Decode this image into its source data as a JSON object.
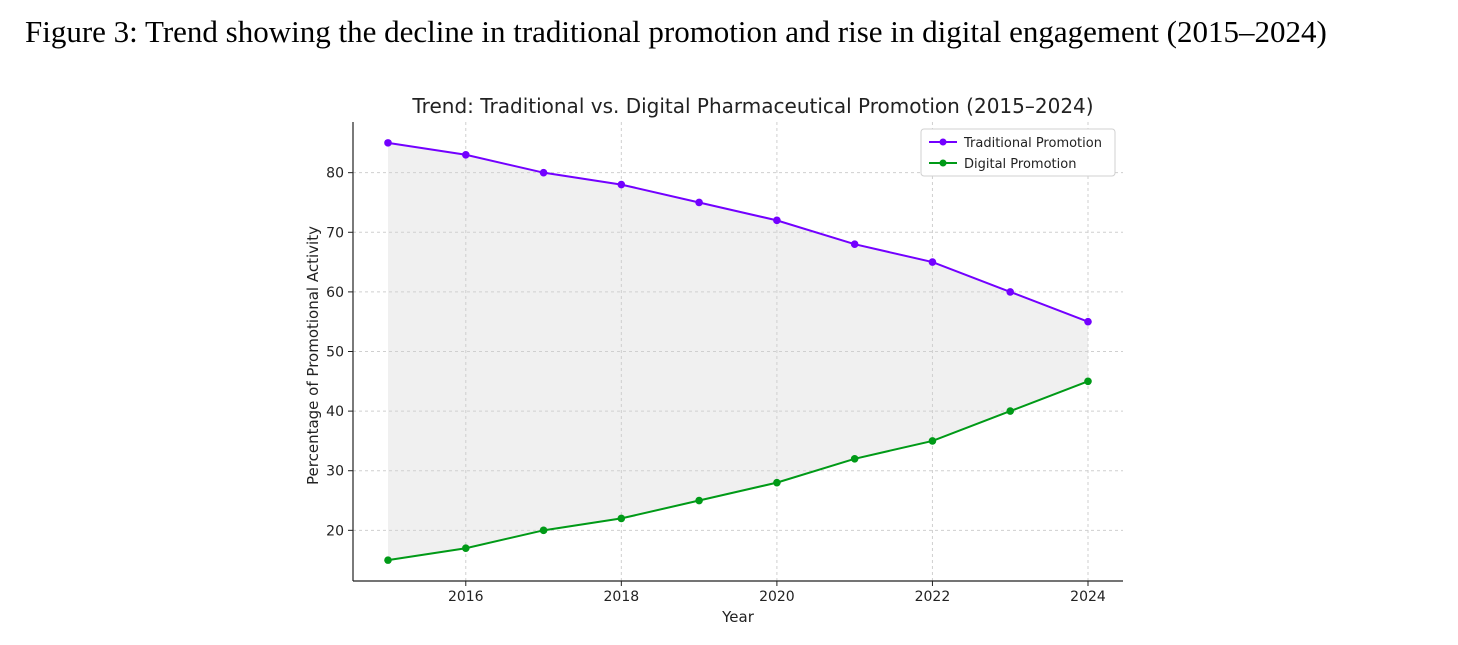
{
  "figure": {
    "caption": "Figure 3: Trend showing the decline in traditional promotion and rise in digital engagement (2015–2024)"
  },
  "chart_data": {
    "type": "line",
    "title": "Trend: Traditional vs. Digital Pharmaceutical Promotion (2015–2024)",
    "xlabel": "Year",
    "ylabel": "Percentage of Promotional Activity",
    "x": [
      2015,
      2016,
      2017,
      2018,
      2019,
      2020,
      2021,
      2022,
      2023,
      2024
    ],
    "x_ticks": [
      2016,
      2018,
      2020,
      2022,
      2024
    ],
    "y_ticks": [
      20,
      30,
      40,
      50,
      60,
      70,
      80
    ],
    "xlim": [
      2014.55,
      2024.45
    ],
    "ylim": [
      11.5,
      88.5
    ],
    "grid": true,
    "legend_position": "top-right",
    "fill_between": true,
    "series": [
      {
        "name": "Traditional Promotion",
        "color": "#7300ff",
        "values": [
          85,
          83,
          80,
          78,
          75,
          72,
          68,
          65,
          60,
          55
        ]
      },
      {
        "name": "Digital Promotion",
        "color": "#009a17",
        "values": [
          15,
          17,
          20,
          22,
          25,
          28,
          32,
          35,
          40,
          45
        ]
      }
    ]
  }
}
